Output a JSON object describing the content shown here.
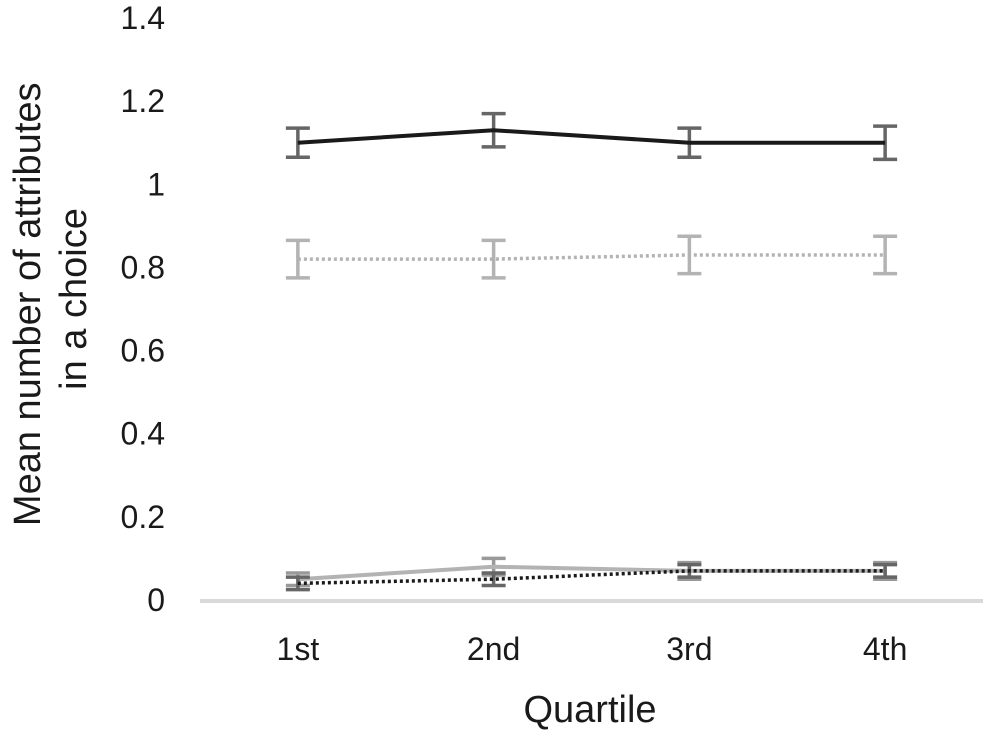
{
  "chart_data": {
    "type": "line",
    "title": "",
    "xlabel": "Quartile",
    "ylabel_lines": [
      "Mean number of attributes",
      "in a choice"
    ],
    "categories": [
      "1st",
      "2nd",
      "3rd",
      "4th"
    ],
    "ylim": [
      0,
      1.4
    ],
    "yticks": [
      {
        "value": 0,
        "label": "0"
      },
      {
        "value": 0.2,
        "label": "0.2"
      },
      {
        "value": 0.4,
        "label": "0.4"
      },
      {
        "value": 0.6,
        "label": "0.6"
      },
      {
        "value": 0.8,
        "label": "0.8"
      },
      {
        "value": 1.0,
        "label": "1"
      },
      {
        "value": 1.2,
        "label": "1.2"
      },
      {
        "value": 1.4,
        "label": "1.4"
      }
    ],
    "grid": false,
    "legend": "none",
    "error_bar_color": "#666666",
    "axis_color": "#d9d9d9",
    "series": [
      {
        "values": [
          1.1,
          1.13,
          1.1,
          1.1
        ],
        "err": [
          0.035,
          0.04,
          0.035,
          0.04
        ],
        "color": "#1a1a1a",
        "dash": "solid",
        "width": 4,
        "errcolor": "#666666"
      },
      {
        "values": [
          0.82,
          0.82,
          0.83,
          0.83
        ],
        "err": [
          0.045,
          0.045,
          0.045,
          0.045
        ],
        "color": "#b3b3b3",
        "dash": "dotted",
        "width": 3.5,
        "errcolor": "#b3b3b3"
      },
      {
        "values": [
          0.05,
          0.08,
          0.07,
          0.07
        ],
        "err": [
          0.015,
          0.02,
          0.02,
          0.02
        ],
        "color": "#b3b3b3",
        "dash": "solid",
        "width": 4,
        "errcolor": "#999999"
      },
      {
        "values": [
          0.04,
          0.05,
          0.07,
          0.07
        ],
        "err": [
          0.015,
          0.015,
          0.015,
          0.015
        ],
        "color": "#1a1a1a",
        "dash": "dotted",
        "width": 3.5,
        "errcolor": "#666666"
      }
    ]
  }
}
